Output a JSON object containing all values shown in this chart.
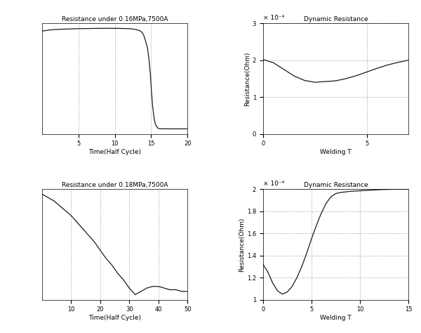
{
  "fig_width": 6.0,
  "fig_height": 4.74,
  "fig_dpi": 100,
  "background_color": "#ffffff",
  "line_color": "#1a1a1a",
  "grid_color": "#999999",
  "grid_linestyle": ":",
  "grid_linewidth": 0.7,
  "top_left": {
    "title": "Resistance under 0.16MPa,7500A",
    "xlabel": "Time(Half Cycle)",
    "ylabel": "",
    "xlim": [
      0,
      20
    ],
    "xticks": [
      5,
      10,
      15,
      20
    ],
    "x": [
      0,
      1,
      2,
      3,
      4,
      5,
      6,
      7,
      8,
      9,
      10,
      11,
      12,
      12.5,
      13.0,
      13.5,
      13.8,
      14.0,
      14.2,
      14.5,
      14.7,
      14.9,
      15.05,
      15.2,
      15.4,
      15.6,
      15.9,
      16.2,
      17,
      18,
      20
    ],
    "y": [
      0.88,
      0.89,
      0.895,
      0.898,
      0.9,
      0.902,
      0.903,
      0.904,
      0.905,
      0.905,
      0.905,
      0.904,
      0.902,
      0.899,
      0.893,
      0.882,
      0.865,
      0.84,
      0.8,
      0.73,
      0.63,
      0.49,
      0.34,
      0.21,
      0.1,
      0.04,
      0.008,
      0.002,
      0.001,
      0.001,
      0.001
    ]
  },
  "top_right": {
    "title": "Dynamic Resistance",
    "xlabel": "Welding T",
    "ylabel": "Resistance(Ohm)",
    "xlim": [
      0,
      7
    ],
    "ylim": [
      0,
      0.0003
    ],
    "xticks": [
      0,
      5
    ],
    "yticks": [
      0,
      0.0001,
      0.0002,
      0.0003
    ],
    "ytick_labels": [
      "0",
      "1",
      "2",
      "3"
    ],
    "sci_label": "× 10⁻⁴",
    "x": [
      0,
      0.5,
      1.0,
      1.5,
      2.0,
      2.5,
      3.0,
      3.5,
      4.0,
      4.5,
      5.0,
      5.5,
      6.0,
      6.5,
      7.0
    ],
    "y": [
      0.000202,
      0.000193,
      0.000175,
      0.000157,
      0.000145,
      0.00014,
      0.000142,
      0.000144,
      0.00015,
      0.000158,
      0.000168,
      0.000178,
      0.000187,
      0.000194,
      0.0002
    ]
  },
  "bottom_left": {
    "title": "Resistance under 0.18MPa,7500A",
    "xlabel": "Time(Half Cycle)",
    "ylabel": "",
    "xlim": [
      0,
      50
    ],
    "xticks": [
      10,
      20,
      30,
      40,
      50
    ],
    "x": [
      0,
      2,
      4,
      6,
      8,
      10,
      12,
      14,
      16,
      18,
      20,
      22,
      24,
      26,
      28,
      30,
      32,
      34,
      36,
      38,
      40,
      42,
      44,
      46,
      48,
      50
    ],
    "y": [
      1.95,
      1.93,
      1.91,
      1.88,
      1.85,
      1.82,
      1.78,
      1.74,
      1.7,
      1.66,
      1.61,
      1.56,
      1.52,
      1.47,
      1.43,
      1.38,
      1.34,
      1.36,
      1.38,
      1.39,
      1.39,
      1.38,
      1.37,
      1.37,
      1.36,
      1.36
    ]
  },
  "bottom_right": {
    "title": "Dynamic Resistance",
    "xlabel": "Welding T",
    "ylabel": "Resistance(Ohm)",
    "xlim": [
      0,
      15
    ],
    "ylim": [
      0.0001,
      0.0002
    ],
    "xticks": [
      0,
      5,
      10,
      15
    ],
    "yticks": [
      0.0001,
      0.00012,
      0.00014,
      0.00016,
      0.00018,
      0.0002
    ],
    "ytick_labels": [
      "1",
      "1.2",
      "1.4",
      "1.6",
      "1.8",
      "2"
    ],
    "sci_label": "× 10⁻⁴",
    "x": [
      0,
      0.5,
      1.0,
      1.5,
      2.0,
      2.5,
      3.0,
      3.5,
      4.0,
      4.5,
      5.0,
      5.5,
      6.0,
      6.5,
      7.0,
      7.5,
      8.0,
      9.0,
      10.0,
      11.0,
      12.0,
      13.0,
      14.0,
      15.0
    ],
    "y": [
      0.000132,
      0.000125,
      0.000115,
      0.000108,
      0.000105,
      0.000107,
      0.000112,
      0.00012,
      0.00013,
      0.000142,
      0.000155,
      0.000167,
      0.000178,
      0.000187,
      0.000193,
      0.000196,
      0.000197,
      0.000198,
      0.0001985,
      0.000199,
      0.0001995,
      0.0001998,
      0.0002,
      0.0002
    ]
  }
}
